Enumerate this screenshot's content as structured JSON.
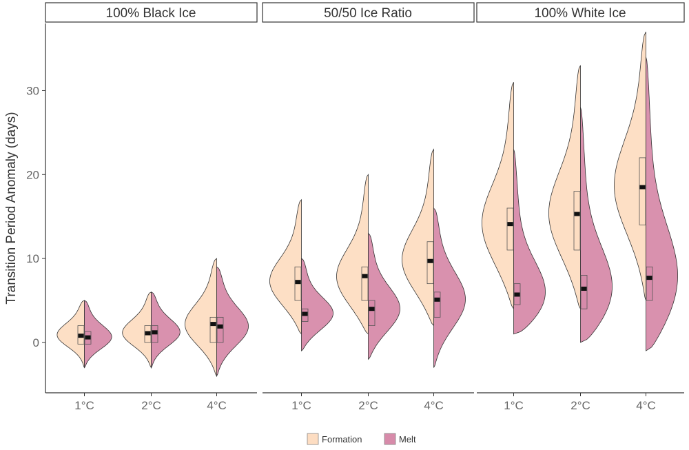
{
  "chart_data": {
    "type": "violin",
    "ylabel": "Transition Period Anomaly (days)",
    "ylim": [
      -6,
      38
    ],
    "yticks": [
      0,
      10,
      20,
      30
    ],
    "categories": [
      "1°C",
      "2°C",
      "4°C"
    ],
    "panels": [
      {
        "title": "100% Black Ice",
        "groups": [
          {
            "category": "1°C",
            "formation": {
              "min": -3,
              "max": 5,
              "q1": -0.2,
              "median": 0.8,
              "q3": 2
            },
            "melt": {
              "min": -3,
              "max": 5,
              "q1": -0.2,
              "median": 0.6,
              "q3": 1.3
            }
          },
          {
            "category": "2°C",
            "formation": {
              "min": -3,
              "max": 6,
              "q1": 0,
              "median": 1.1,
              "q3": 2
            },
            "melt": {
              "min": -3,
              "max": 6,
              "q1": 0,
              "median": 1.2,
              "q3": 2
            }
          },
          {
            "category": "4°C",
            "formation": {
              "min": -4,
              "max": 10,
              "q1": 0,
              "median": 2.2,
              "q3": 3
            },
            "melt": {
              "min": -4,
              "max": 9,
              "q1": 0,
              "median": 1.9,
              "q3": 3
            }
          }
        ]
      },
      {
        "title": "50/50 Ice Ratio",
        "groups": [
          {
            "category": "1°C",
            "formation": {
              "min": 1,
              "max": 17,
              "q1": 5,
              "median": 7.2,
              "q3": 9
            },
            "melt": {
              "min": -1,
              "max": 10,
              "q1": 2.5,
              "median": 3.4,
              "q3": 4
            }
          },
          {
            "category": "2°C",
            "formation": {
              "min": 1,
              "max": 20,
              "q1": 5,
              "median": 7.9,
              "q3": 9
            },
            "melt": {
              "min": -2,
              "max": 13,
              "q1": 2,
              "median": 4,
              "q3": 5
            }
          },
          {
            "category": "4°C",
            "formation": {
              "min": 2,
              "max": 23,
              "q1": 7,
              "median": 9.7,
              "q3": 12
            },
            "melt": {
              "min": -3,
              "max": 16,
              "q1": 3,
              "median": 5.1,
              "q3": 6
            }
          }
        ]
      },
      {
        "title": "100% White Ice",
        "groups": [
          {
            "category": "1°C",
            "formation": {
              "min": 4,
              "max": 31,
              "q1": 11,
              "median": 14.1,
              "q3": 16
            },
            "melt": {
              "min": 1,
              "max": 23,
              "q1": 4.5,
              "median": 5.7,
              "q3": 7
            }
          },
          {
            "category": "2°C",
            "formation": {
              "min": 4,
              "max": 33,
              "q1": 11,
              "median": 15.3,
              "q3": 18
            },
            "melt": {
              "min": 0,
              "max": 28,
              "q1": 4,
              "median": 6.4,
              "q3": 8
            }
          },
          {
            "category": "4°C",
            "formation": {
              "min": 5,
              "max": 37,
              "q1": 14,
              "median": 18.5,
              "q3": 22
            },
            "melt": {
              "min": -1,
              "max": 34,
              "q1": 5,
              "median": 7.7,
              "q3": 9
            }
          }
        ]
      }
    ],
    "series": [
      {
        "name": "Formation",
        "color": "#FDDDC2"
      },
      {
        "name": "Melt",
        "color": "#D78BAA"
      }
    ],
    "legend_position": "bottom",
    "grid": false
  }
}
